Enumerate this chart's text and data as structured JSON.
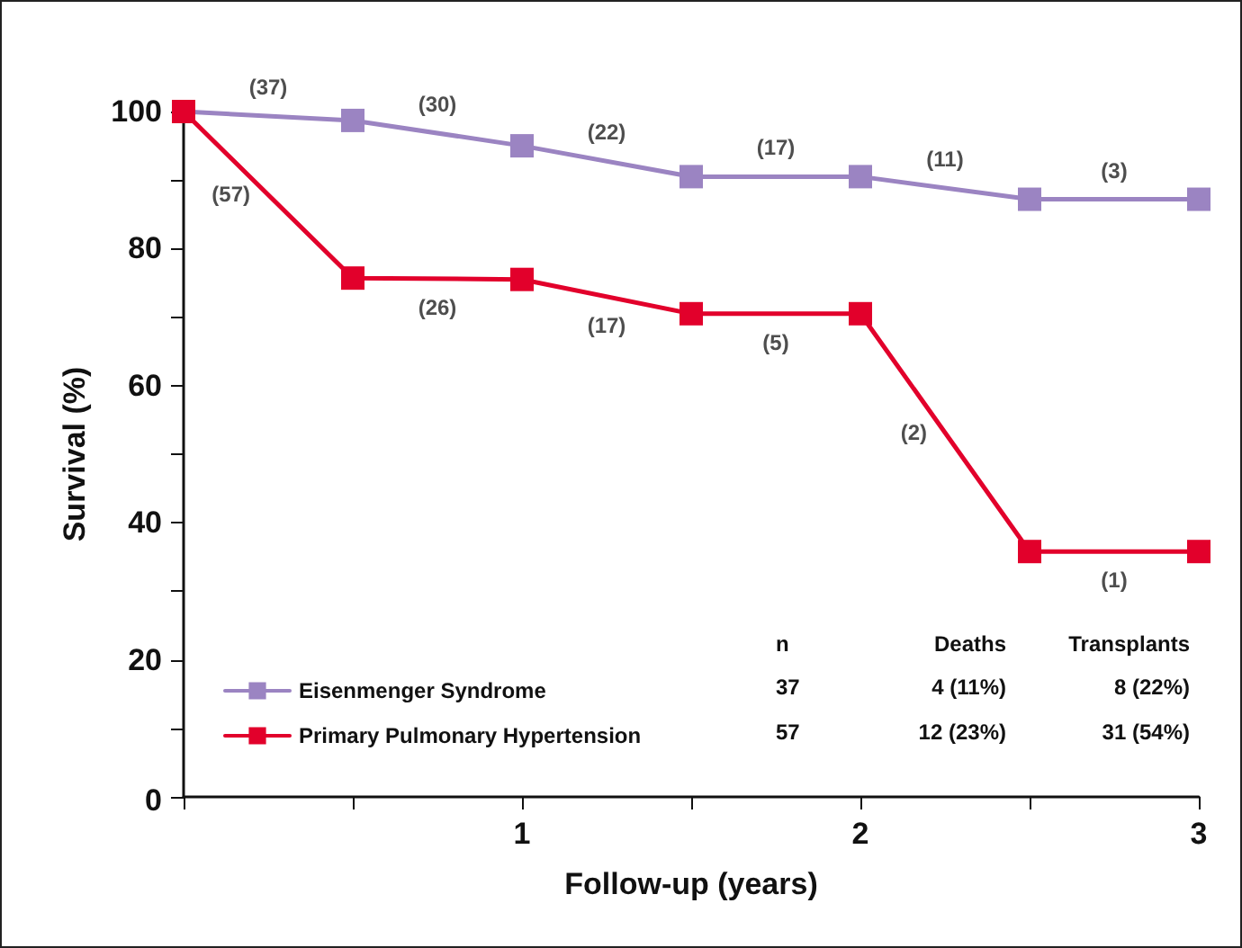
{
  "chart_data": {
    "type": "line",
    "xlabel": "Follow-up (years)",
    "ylabel": "Survival (%)",
    "x": [
      0,
      0.5,
      1,
      1.5,
      2,
      2.5,
      3
    ],
    "series": [
      {
        "name": "Eisenmenger Syndrome",
        "color": "#9b84c2",
        "values": [
          100,
          98.7,
          95,
          90.5,
          90.5,
          87.2,
          87.2
        ]
      },
      {
        "name": "Primary Pulmonary Hypertension",
        "color": "#e2002b",
        "values": [
          100,
          75.7,
          75.5,
          70.5,
          70.5,
          35.8,
          35.8
        ]
      }
    ],
    "xlim": [
      0,
      3
    ],
    "xticks": [
      {
        "value": 0,
        "label": null
      },
      {
        "value": 0.5,
        "label": null
      },
      1,
      {
        "value": 1.5,
        "label": null
      },
      2,
      {
        "value": 2.5,
        "label": null
      },
      3
    ],
    "ylim": [
      0,
      100
    ],
    "yticks": [
      0,
      {
        "value": 10,
        "label": null
      },
      20,
      {
        "value": 30,
        "label": null
      },
      40,
      {
        "value": 50,
        "label": null
      },
      60,
      {
        "value": 70,
        "label": null
      },
      80,
      {
        "value": 90,
        "label": null
      },
      100
    ],
    "marker": "square",
    "line_style": "solid",
    "legend": "bottom left",
    "grid": false,
    "annotations": [
      {
        "text": "(37)",
        "x": 0.25,
        "y": 99.4
      },
      {
        "text": "(30)",
        "x": 0.75,
        "y": 96.9
      },
      {
        "text": "(22)",
        "x": 1.25,
        "y": 92.8
      },
      {
        "text": "(17)",
        "x": 1.75,
        "y": 90.5
      },
      {
        "text": "(11)",
        "x": 2.25,
        "y": 88.9
      },
      {
        "text": "(3)",
        "x": 2.75,
        "y": 87.2
      },
      {
        "text": "(57)",
        "x": 0.25,
        "y": 87.9
      },
      {
        "text": "(26)",
        "x": 0.75,
        "y": 75.6
      },
      {
        "text": "(17)",
        "x": 1.25,
        "y": 73
      },
      {
        "text": "(5)",
        "x": 1.75,
        "y": 70.5
      },
      {
        "text": "(2)",
        "x": 2.25,
        "y": 53.2
      },
      {
        "text": "(1)",
        "x": 2.75,
        "y": 35.8
      },
      "n",
      "Deaths",
      "Transplants",
      "37",
      "4 (11%)",
      "8 (22%)",
      "57",
      "12 (23%)",
      "31 (54%)"
    ]
  }
}
